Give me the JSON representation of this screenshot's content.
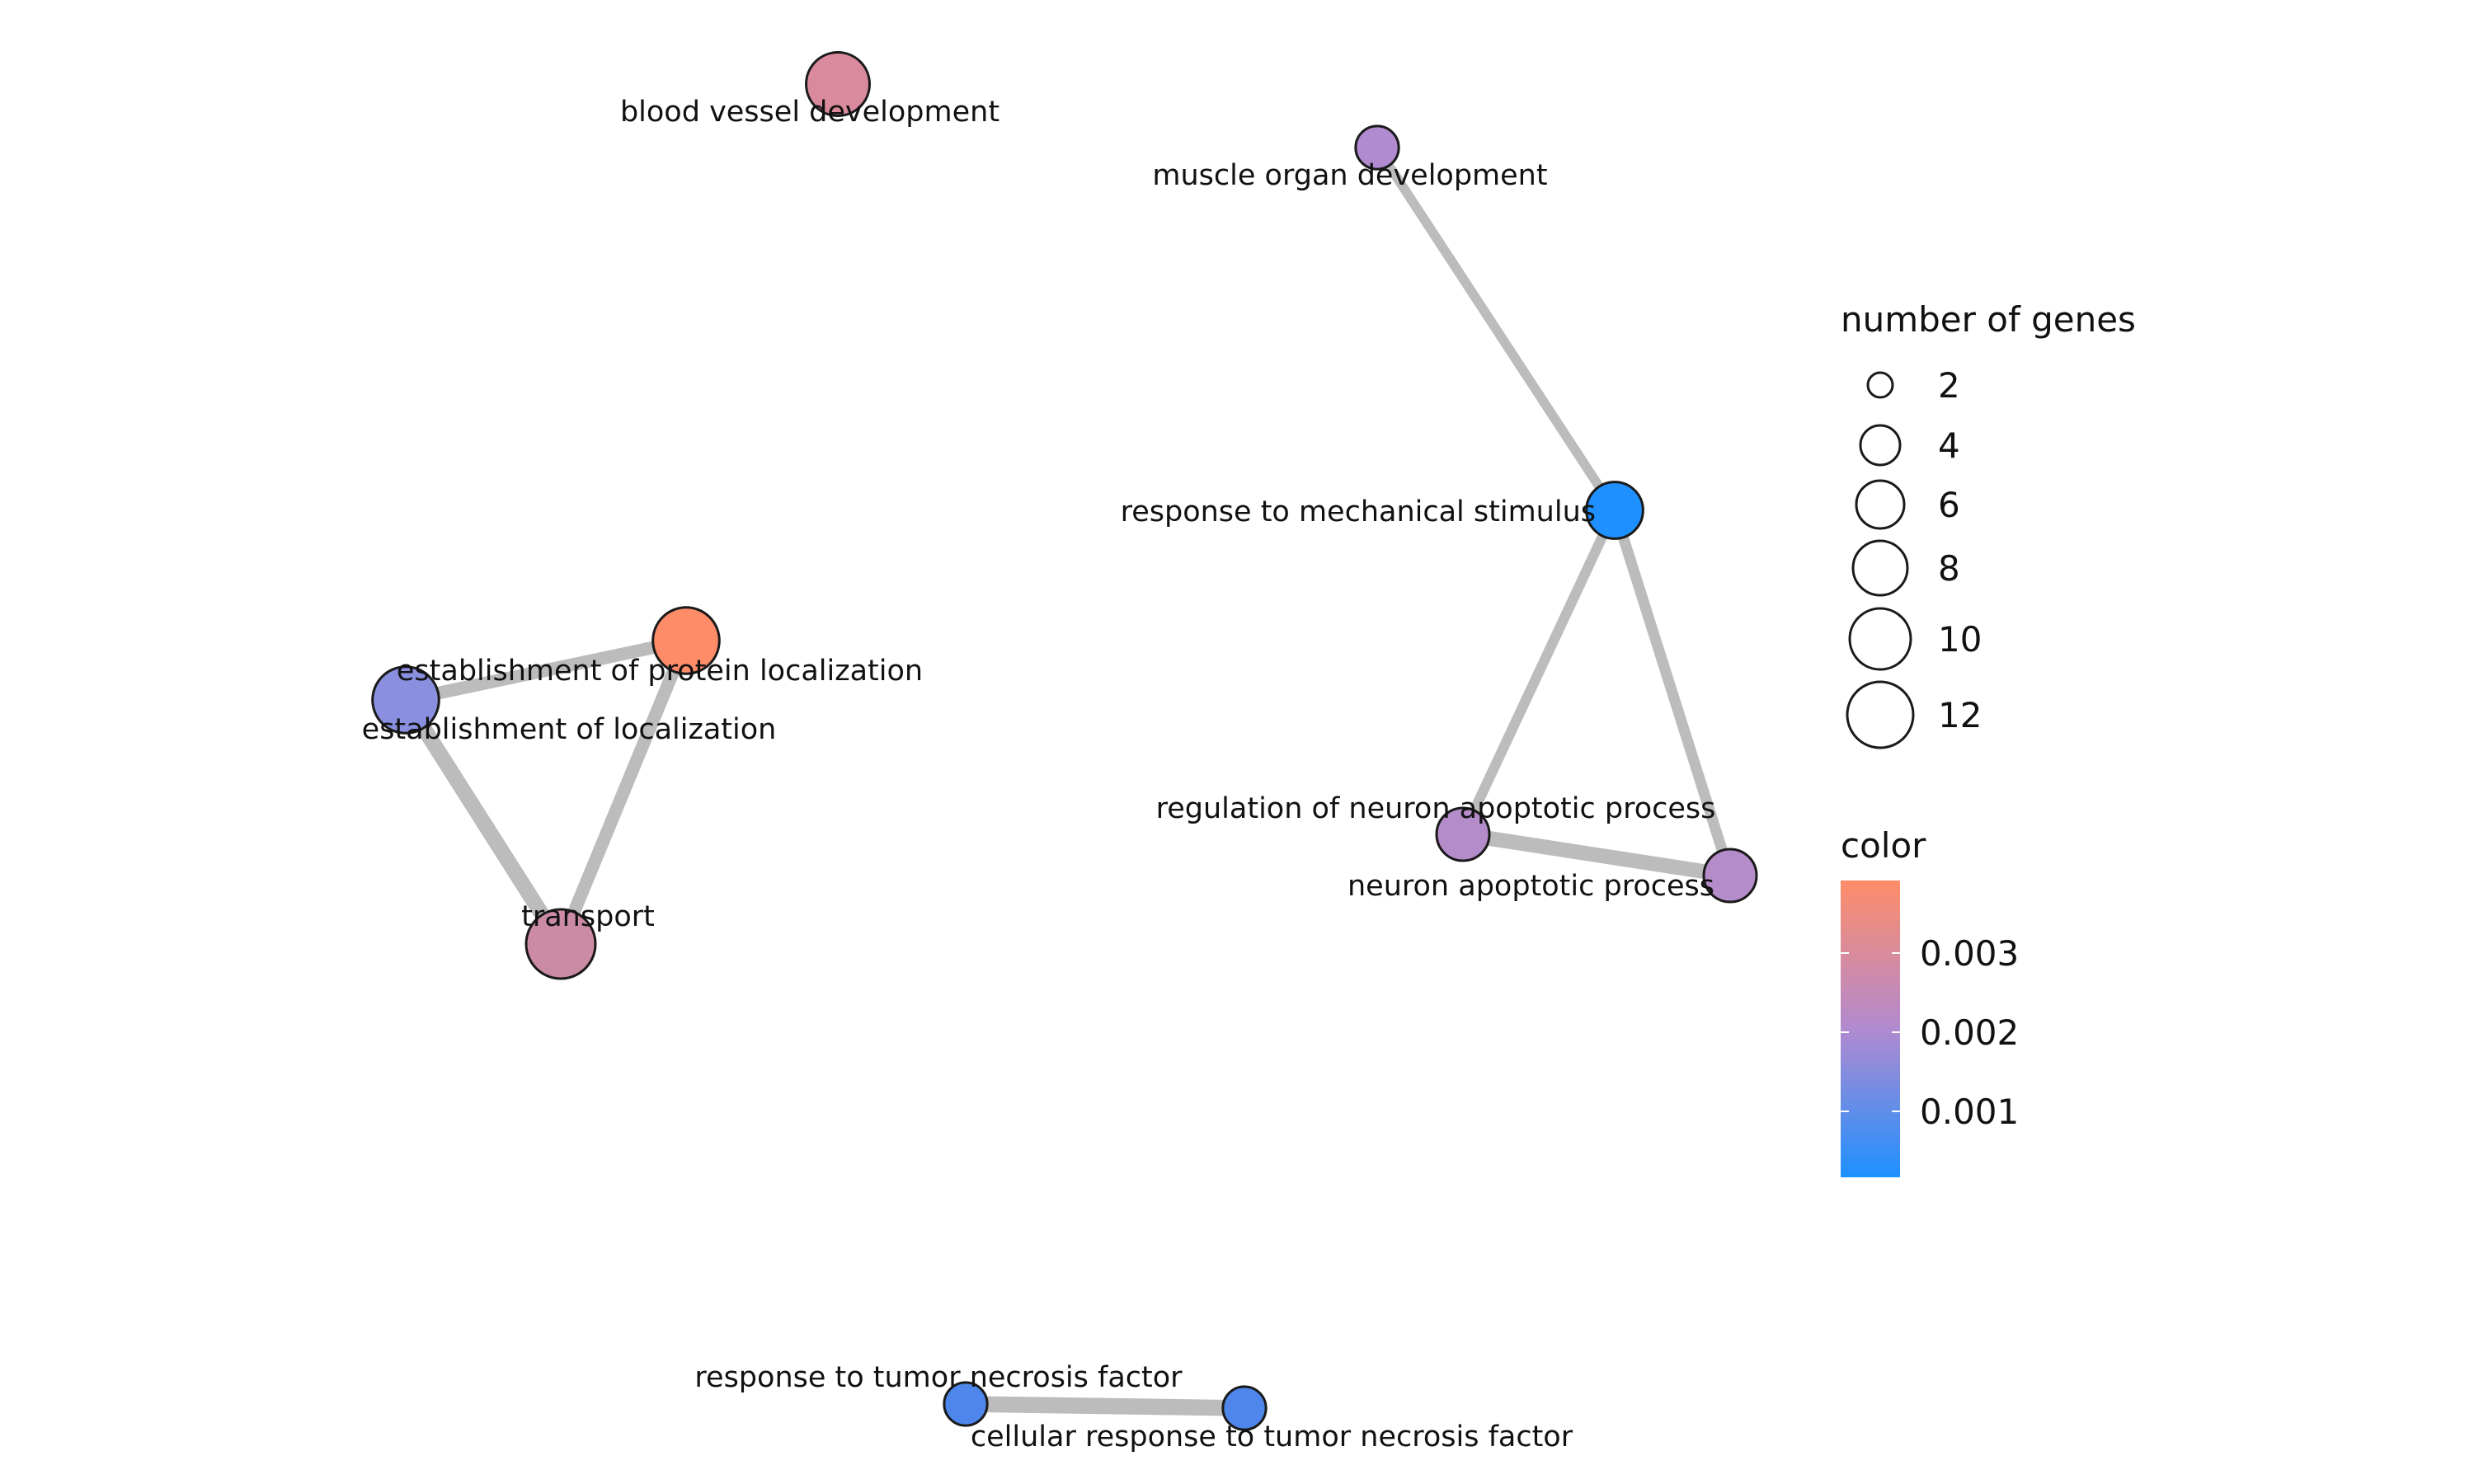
{
  "network": {
    "nodes": [
      {
        "id": "n1",
        "label": "blood vessel development",
        "genes": 7,
        "color": "#D98A9C"
      },
      {
        "id": "n2",
        "label": "muscle organ development",
        "genes": 2,
        "color": "#B18ACF"
      },
      {
        "id": "n3",
        "label": "response to mechanical stimulus",
        "genes": 5,
        "color": "#1E90FF"
      },
      {
        "id": "n4",
        "label": "establishment of protein localization",
        "genes": 8,
        "color": "#FF8C69"
      },
      {
        "id": "n5",
        "label": "establishment of localization",
        "genes": 8,
        "color": "#8A8FE0"
      },
      {
        "id": "n6",
        "label": "transport",
        "genes": 9,
        "color": "#CC8BA5"
      },
      {
        "id": "n7",
        "label": "regulation of neuron apoptotic process",
        "genes": 4,
        "color": "#B58CCA"
      },
      {
        "id": "n8",
        "label": "neuron apoptotic process",
        "genes": 4,
        "color": "#B58CCA"
      },
      {
        "id": "n9",
        "label": "response to tumor necrosis factor",
        "genes": 2,
        "color": "#4F86EC"
      },
      {
        "id": "n10",
        "label": "cellular response to tumor necrosis factor",
        "genes": 2,
        "color": "#4F86EC"
      }
    ],
    "edges": [
      {
        "from": "n2",
        "to": "n3",
        "weight": 0.35
      },
      {
        "from": "n3",
        "to": "n7",
        "weight": 0.4
      },
      {
        "from": "n3",
        "to": "n8",
        "weight": 0.45
      },
      {
        "from": "n7",
        "to": "n8",
        "weight": 0.75
      },
      {
        "from": "n4",
        "to": "n5",
        "weight": 0.6
      },
      {
        "from": "n4",
        "to": "n6",
        "weight": 0.6
      },
      {
        "from": "n5",
        "to": "n6",
        "weight": 0.8
      },
      {
        "from": "n9",
        "to": "n10",
        "weight": 0.85
      }
    ]
  },
  "legend": {
    "size_title": "number of genes",
    "size_entries": [
      "2",
      "4",
      "6",
      "8",
      "10",
      "12"
    ],
    "color_title": "color",
    "color_ticks": [
      "0.003",
      "0.002",
      "0.001"
    ],
    "color_gradient": [
      "#FF8C69",
      "#B18ACF",
      "#1E90FF"
    ]
  }
}
